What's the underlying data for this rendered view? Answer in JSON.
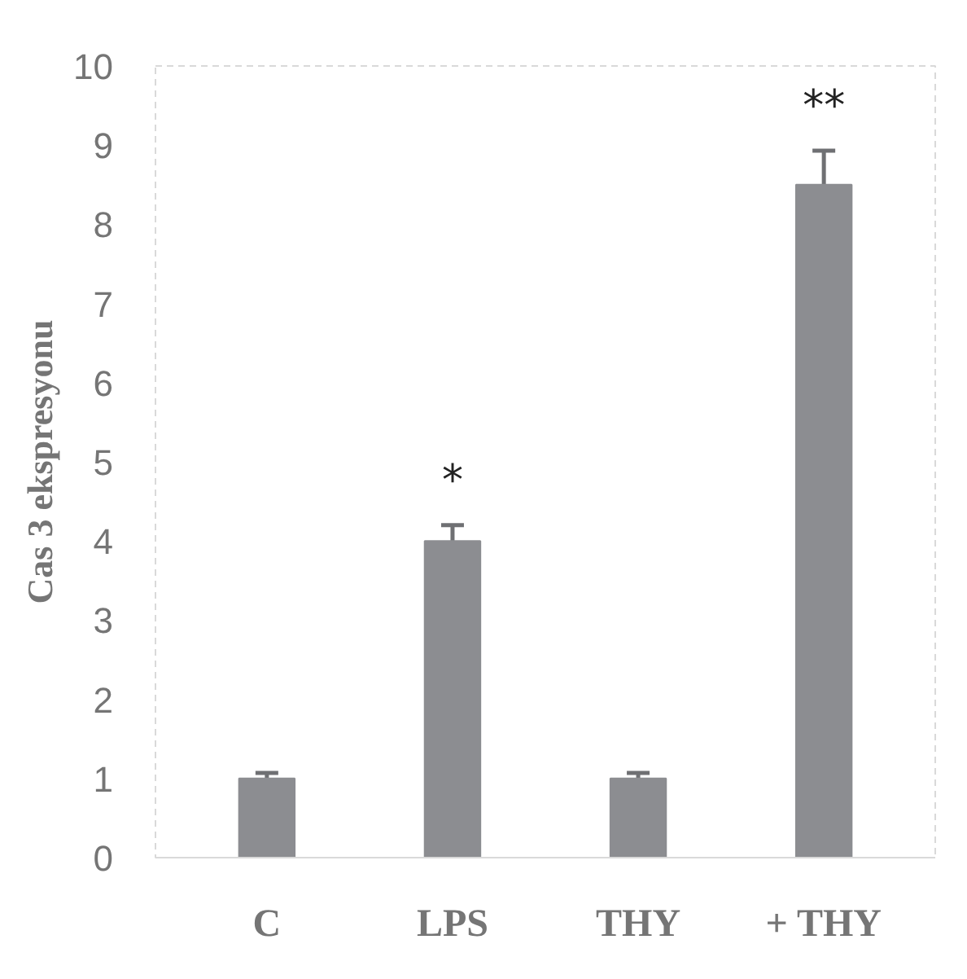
{
  "chart_data": {
    "type": "bar",
    "ylabel": "Cas 3 ekspresyonu",
    "categories": [
      "C",
      "LPS",
      "THY",
      "+ THY"
    ],
    "values": [
      1.0,
      4.0,
      1.0,
      8.5
    ],
    "errors": [
      0.07,
      0.2,
      0.07,
      0.43
    ],
    "color": "#8c8d91",
    "ylim": [
      0,
      10
    ],
    "yticks": [
      0,
      1,
      2,
      3,
      4,
      5,
      6,
      7,
      8,
      9,
      10
    ],
    "grid": false,
    "value_labels": [
      null,
      "*",
      null,
      "**"
    ]
  }
}
